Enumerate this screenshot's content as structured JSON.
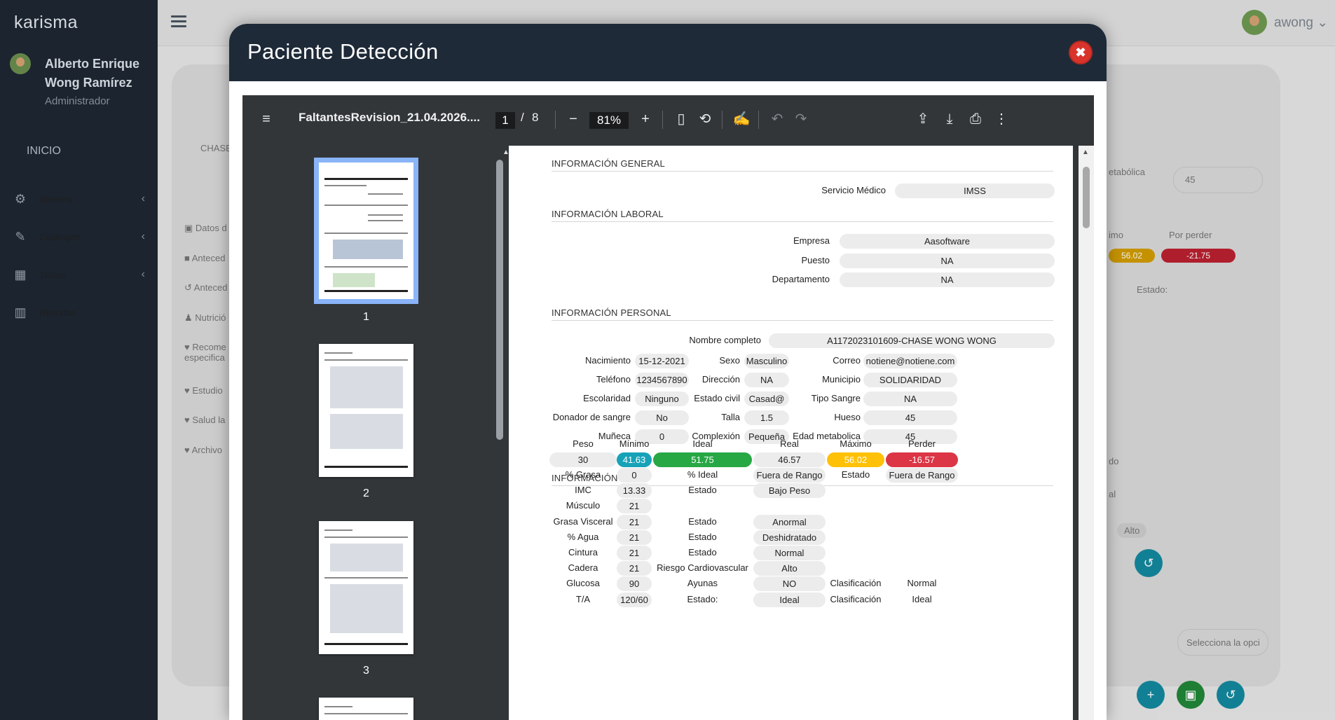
{
  "app": {
    "brand": "karisma"
  },
  "user": {
    "name": "Alberto Enrique Wong Ramírez",
    "role": "Administrador"
  },
  "sidebar": {
    "inicio": "INICIO",
    "items": [
      {
        "label": "Sistema",
        "icon": "gears-icon"
      },
      {
        "label": "Catálogos",
        "icon": "edit-icon"
      },
      {
        "label": "Tablas",
        "icon": "table-icon"
      },
      {
        "label": "Reportes",
        "icon": "bar-chart-icon"
      }
    ]
  },
  "topbar": {
    "username": "awong"
  },
  "background": {
    "patient_label": "CHASE",
    "tabs": [
      "Datos d",
      "Anteced",
      "Anteced",
      "Nutrició",
      "Recome especifica",
      "Estudio",
      "Salud la",
      "Archivo"
    ],
    "right": {
      "metabolica_label": "etabólica",
      "metabolica_value": "45",
      "minimo_label": "imo",
      "por_perder_label": "Por perder",
      "minimo_value": "56.02",
      "por_perder_value": "-21.75",
      "estado_label": "Estado:",
      "do_label": "do",
      "al_label": "al",
      "alto_label": "Alto",
      "select_placeholder": "Selecciona la opci"
    }
  },
  "modal": {
    "title": "Paciente Detección",
    "viewer": {
      "filename": "FaltantesRevision_21.04.2026....",
      "current_page": "1",
      "page_sep": "/",
      "total_pages": "8",
      "zoom": "81%",
      "thumb_labels": [
        "1",
        "2",
        "3"
      ]
    },
    "doc": {
      "general": {
        "heading": "INFORMACIÓN GENERAL",
        "servicio_label": "Servicio Médico",
        "servicio_value": "IMSS"
      },
      "laboral": {
        "heading": "INFORMACIÓN LABORAL",
        "empresa_label": "Empresa",
        "empresa_value": "Aasoftware",
        "puesto_label": "Puesto",
        "puesto_value": "NA",
        "departamento_label": "Departamento",
        "departamento_value": "NA"
      },
      "personal": {
        "heading": "INFORMACIÓN PERSONAL",
        "nombre_label": "Nombre completo",
        "nombre_value": "A1172023101609-CHASE WONG WONG",
        "rows": [
          [
            [
              "Nacimiento",
              "15-12-2021"
            ],
            [
              "Sexo",
              "Masculino"
            ],
            [
              "Correo",
              "notiene@notiene.com"
            ]
          ],
          [
            [
              "Teléfono",
              "1234567890"
            ],
            [
              "Dirección",
              "NA"
            ],
            [
              "Municipio",
              "SOLIDARIDAD"
            ]
          ],
          [
            [
              "Escolaridad",
              "Ninguno"
            ],
            [
              "Estado civil",
              "Casad@"
            ],
            [
              "Tipo Sangre",
              "NA"
            ]
          ],
          [
            [
              "Donador de sangre",
              "No"
            ],
            [
              "Talla",
              "1.5"
            ],
            [
              "Hueso",
              "45"
            ]
          ],
          [
            [
              "Muñeca",
              "0"
            ],
            [
              "Complexión",
              "Pequeña"
            ],
            [
              "Edad metabolica",
              "45"
            ]
          ]
        ]
      },
      "peso": {
        "heading": "INFORMACIÓN PESO",
        "headers": [
          "Peso",
          "Mínimo",
          "Ideal",
          "Real",
          "Máximo",
          "Perder"
        ],
        "values": [
          "30",
          "41.63",
          "51.75",
          "46.57",
          "56.02",
          "-16.57"
        ],
        "rows": [
          [
            "% Grasa",
            "0",
            "% Ideal",
            "Fuera de Rango",
            "Estado",
            "Fuera de Rango"
          ],
          [
            "IMC",
            "13.33",
            "Estado",
            "Bajo Peso",
            "",
            ""
          ],
          [
            "Músculo",
            "21",
            "",
            "",
            "",
            ""
          ],
          [
            "Grasa Visceral",
            "21",
            "Estado",
            "Anormal",
            "",
            ""
          ],
          [
            "% Agua",
            "21",
            "Estado",
            "Deshidratado",
            "",
            ""
          ],
          [
            "Cintura",
            "21",
            "Estado",
            "Normal",
            "",
            ""
          ],
          [
            "Cadera",
            "21",
            "Riesgo Cardiovascular",
            "Alto",
            "",
            ""
          ],
          [
            "Glucosa",
            "90",
            "Ayunas",
            "NO",
            "Clasificación",
            "Normal"
          ],
          [
            "T/A",
            "120/60",
            "Estado:",
            "Ideal",
            "Clasificación",
            "Ideal"
          ]
        ]
      }
    }
  },
  "colors": {
    "sidebar": "#1e2733",
    "modal_header": "#1f2a38",
    "close": "#d9342b",
    "info": "#17a2b8",
    "success": "#28a745",
    "warning": "#ffc107",
    "danger": "#dc3545"
  }
}
